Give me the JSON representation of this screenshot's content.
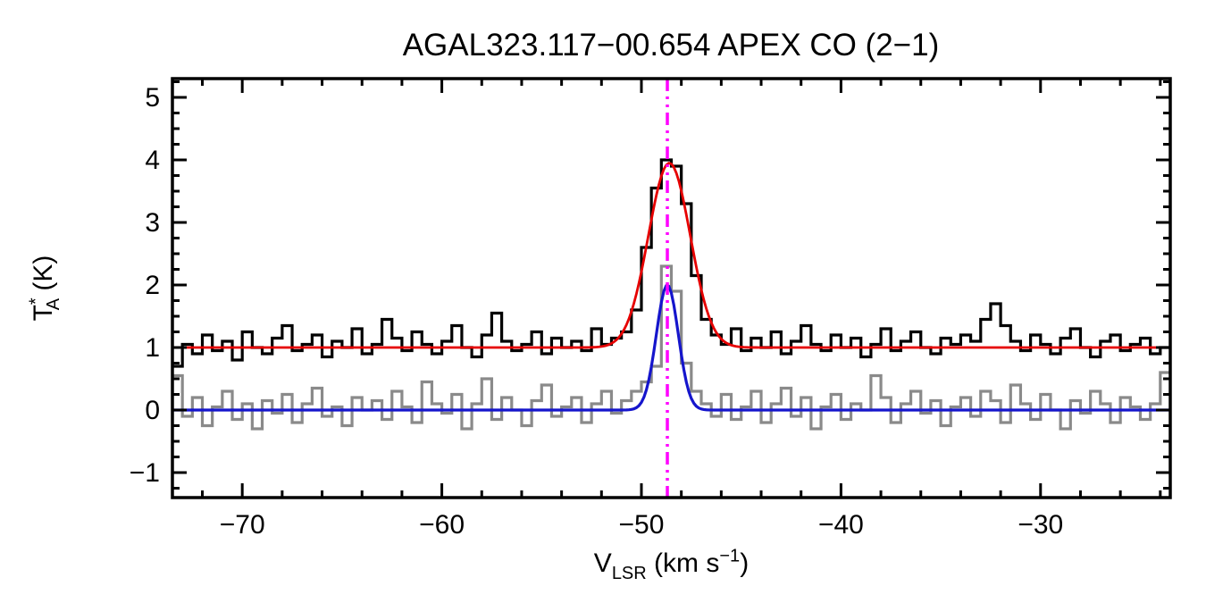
{
  "title": "AGAL323.117−00.654  APEX CO (2−1)",
  "chart_data": {
    "type": "line",
    "subtype": "spectrum-histogram-with-gaussian-fits",
    "title": "AGAL323.117−00.654  APEX CO (2−1)",
    "xlabel_rich": [
      {
        "t": "V"
      },
      {
        "t": "LSR",
        "style": "sub"
      },
      {
        "t": " (km s"
      },
      {
        "t": "−1",
        "style": "sup"
      },
      {
        "t": ")"
      }
    ],
    "ylabel_rich": [
      {
        "t": "T"
      },
      {
        "t": "*",
        "style": "sup"
      },
      {
        "t": "A",
        "style": "sub",
        "dx": -14
      },
      {
        "t": " (K)"
      }
    ],
    "xlim": [
      -73.5,
      -23.5
    ],
    "ylim": [
      -1.4,
      5.3
    ],
    "x_ticks": [
      -70,
      -60,
      -50,
      -40,
      -30
    ],
    "x_tick_labels": [
      "−70",
      "−60",
      "−50",
      "−40",
      "−30"
    ],
    "x_minor_step": 2,
    "y_ticks": [
      -1,
      0,
      1,
      2,
      3,
      4,
      5
    ],
    "y_tick_labels": [
      "−1",
      "0",
      "1",
      "2",
      "3",
      "4",
      "5"
    ],
    "y_minor_step": 0.25,
    "bin_width": 0.5,
    "x_start": -73.25,
    "series": [
      {
        "name": "observed-spectrum",
        "color": "#000000",
        "line_width": 3.2,
        "baseline": 1.0,
        "values": [
          0.7,
          1.05,
          0.9,
          1.2,
          0.95,
          1.1,
          0.8,
          1.25,
          1.0,
          0.9,
          1.15,
          1.35,
          0.95,
          1.05,
          1.2,
          0.85,
          1.1,
          1.0,
          1.3,
          0.9,
          1.05,
          1.45,
          1.15,
          0.95,
          1.25,
          1.05,
          0.9,
          1.1,
          1.35,
          1.0,
          0.85,
          1.2,
          1.55,
          1.1,
          0.95,
          1.05,
          1.25,
          0.9,
          1.15,
          1.0,
          1.1,
          0.95,
          1.3,
          1.05,
          1.15,
          1.25,
          1.6,
          2.6,
          3.55,
          4.0,
          3.9,
          3.3,
          2.15,
          1.45,
          1.2,
          1.05,
          1.3,
          0.95,
          1.15,
          1.0,
          1.25,
          0.9,
          1.1,
          1.35,
          1.05,
          0.95,
          1.2,
          1.0,
          1.15,
          0.85,
          1.05,
          1.3,
          0.95,
          1.1,
          1.25,
          1.0,
          0.9,
          1.15,
          1.05,
          1.2,
          1.1,
          1.45,
          1.7,
          1.35,
          1.1,
          0.95,
          1.2,
          1.05,
          0.9,
          1.15,
          1.3,
          1.0,
          0.85,
          1.1,
          1.2,
          0.95,
          1.05,
          1.15,
          0.9,
          1.0
        ]
      },
      {
        "name": "second-spectrum",
        "color": "#8a8a8a",
        "line_width": 3.2,
        "baseline": 0.0,
        "values": [
          0.55,
          -0.1,
          0.2,
          -0.25,
          0.05,
          0.3,
          -0.15,
          0.1,
          -0.3,
          0.15,
          -0.05,
          0.25,
          -0.2,
          0.1,
          0.35,
          -0.1,
          0.05,
          -0.25,
          0.2,
          0.0,
          0.15,
          -0.15,
          0.3,
          0.05,
          -0.2,
          0.45,
          0.1,
          -0.05,
          0.25,
          -0.3,
          0.1,
          0.5,
          -0.15,
          0.2,
          0.0,
          -0.25,
          0.15,
          0.4,
          -0.1,
          0.05,
          0.2,
          -0.2,
          0.1,
          0.3,
          -0.05,
          0.15,
          0.3,
          0.45,
          0.7,
          2.3,
          1.9,
          0.75,
          0.3,
          0.1,
          -0.1,
          0.25,
          -0.15,
          0.05,
          0.3,
          -0.2,
          0.1,
          0.35,
          -0.1,
          0.2,
          -0.3,
          0.05,
          0.25,
          -0.15,
          0.1,
          0.0,
          0.55,
          0.2,
          -0.2,
          0.1,
          0.3,
          -0.05,
          0.15,
          -0.25,
          0.05,
          0.2,
          -0.1,
          0.3,
          0.15,
          -0.2,
          0.4,
          0.1,
          -0.15,
          0.25,
          0.0,
          -0.3,
          0.15,
          -0.05,
          0.3,
          0.1,
          -0.2,
          0.2,
          0.05,
          -0.15,
          0.1,
          0.6
        ]
      }
    ],
    "fits": [
      {
        "name": "gaussian-fit-observed",
        "color": "#e60000",
        "line_width": 2.8,
        "baseline": 1.0,
        "amplitude": 2.95,
        "center": -48.6,
        "sigma": 1.05
      },
      {
        "name": "gaussian-fit-second",
        "color": "#1515cc",
        "line_width": 3.2,
        "baseline": 0.0,
        "amplitude": 2.0,
        "center": -48.7,
        "sigma": 0.55
      }
    ],
    "vline": {
      "x": -48.7,
      "color": "#ff00ff",
      "line_width": 3.5,
      "dash": "14 6 3 6 3 6"
    },
    "frame_color": "#000000",
    "background": "#ffffff",
    "grid": false,
    "legend": "none"
  }
}
